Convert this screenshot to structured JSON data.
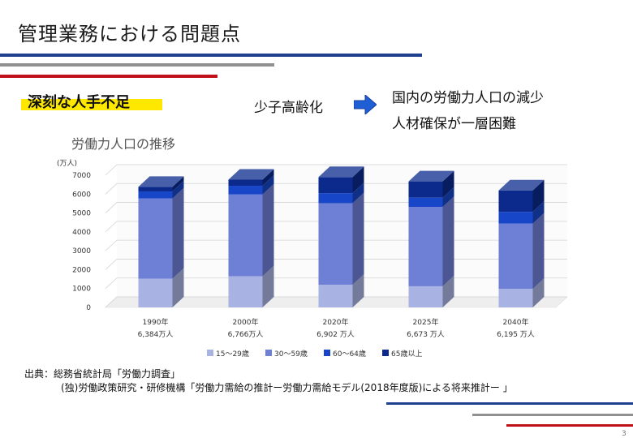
{
  "title": "管理業務における問題点",
  "subheading": "深刻な人手不足",
  "cause": "少子高齢化",
  "effects": [
    "国内の労働力人口の減少",
    "人材確保が一層困難"
  ],
  "source": {
    "line1": "出典：総務省統計局「労働力調査」",
    "line2": "(独)労働政策研究・研修機構「労働力需給の推計ー労働力需給モデル(2018年度版)による将来推計ー 」"
  },
  "page_number": "3",
  "colors": {
    "navy": "#1f3f8f",
    "red": "#c0101a",
    "gray": "#8f8f8f",
    "highlight": "#ffe800",
    "arrow": "#1f5fd6"
  },
  "chart_data": {
    "type": "bar",
    "stacked": true,
    "title": "労働力人口の推移",
    "unit_label": "(万人)",
    "categories": [
      "1990年",
      "2000年",
      "2020年",
      "2025年",
      "2040年"
    ],
    "totals_labels": [
      "6,384万人",
      "6,766万人",
      "6,902 万人",
      "6,673 万人",
      "6,195 万人"
    ],
    "yticks": [
      0,
      1000,
      2000,
      3000,
      4000,
      5000,
      6000,
      7000
    ],
    "ylim": [
      0,
      7000
    ],
    "series": [
      {
        "name": "15～29歳",
        "color": "#a9b3e3",
        "values": [
          1520,
          1650,
          1200,
          1120,
          980
        ]
      },
      {
        "name": "30～59歳",
        "color": "#6e7fd6",
        "values": [
          4250,
          4330,
          4320,
          4200,
          3460
        ]
      },
      {
        "name": "60～64歳",
        "color": "#1846c8",
        "values": [
          370,
          460,
          530,
          490,
          620
        ]
      },
      {
        "name": "65歳以上",
        "color": "#0b2a8c",
        "values": [
          244,
          326,
          852,
          863,
          1135
        ]
      }
    ]
  }
}
